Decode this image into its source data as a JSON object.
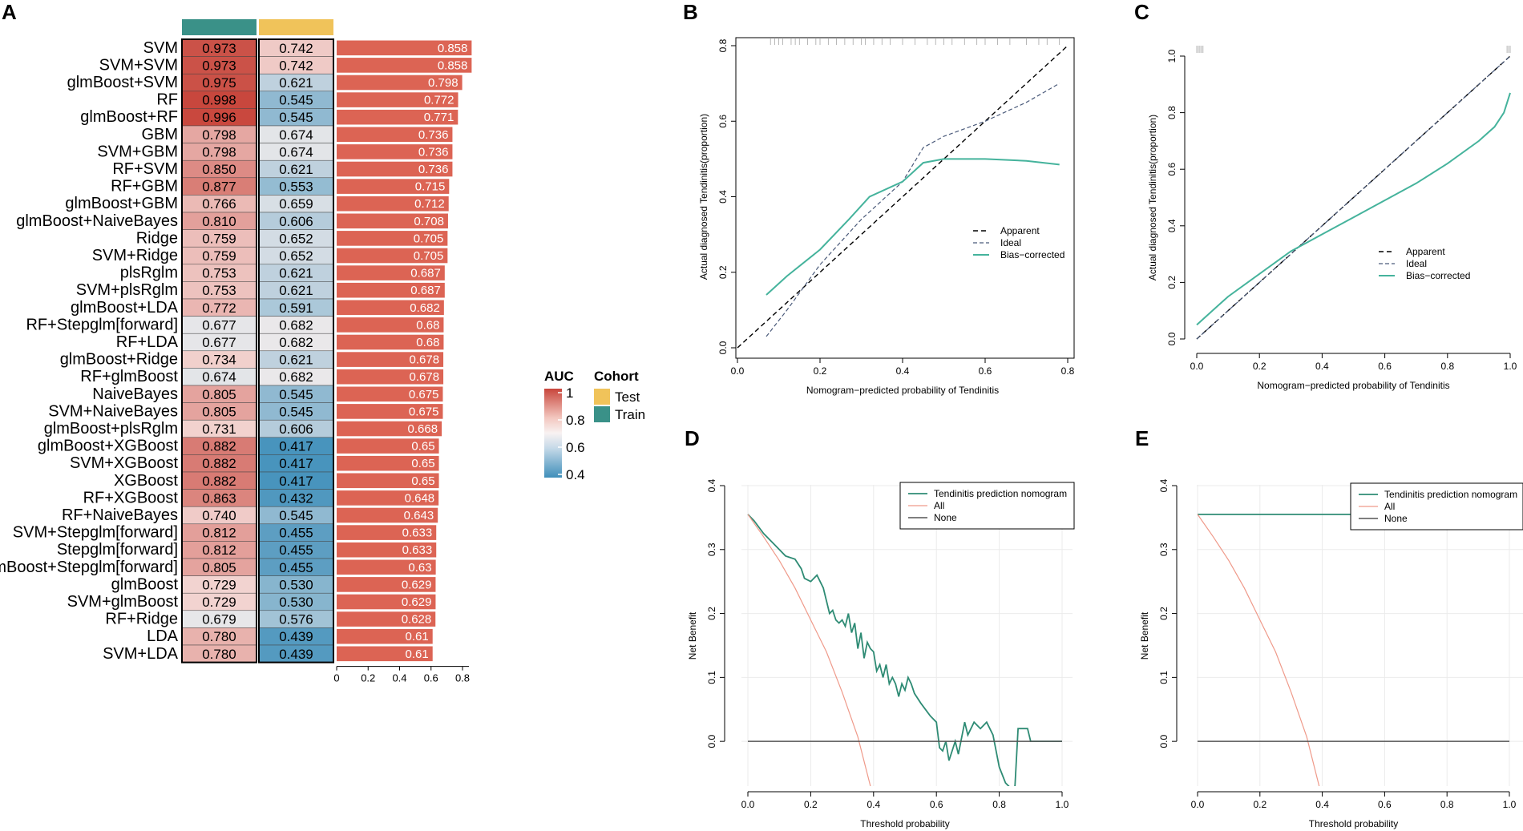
{
  "panel_labels": {
    "A": "A",
    "B": "B",
    "C": "C",
    "D": "D",
    "E": "E"
  },
  "colors": {
    "train": "#3a9188",
    "test": "#f0c35a",
    "bar": "#dc6454",
    "heat_high": "#c8463c",
    "heat_mid": "#fbf1ef",
    "heat_low": "#3f8fba",
    "cal_green": "#45b39c",
    "dca_green": "#2e8b74",
    "dca_all": "#ef9a8a",
    "dca_none": "#555555"
  },
  "heatmap_legend": {
    "auc_title": "AUC",
    "auc_ticks": [
      "1",
      "0.8",
      "0.6",
      "0.4"
    ],
    "cohort_title": "Cohort",
    "cohort_items": [
      "Test",
      "Train"
    ]
  },
  "chart_data": [
    {
      "id": "A",
      "type": "heatmap",
      "title": "",
      "columns": [
        "Train",
        "Test"
      ],
      "models": [
        "SVM",
        "SVM+SVM",
        "glmBoost+SVM",
        "RF",
        "glmBoost+RF",
        "GBM",
        "SVM+GBM",
        "RF+SVM",
        "RF+GBM",
        "glmBoost+GBM",
        "glmBoost+NaiveBayes",
        "Ridge",
        "SVM+Ridge",
        "plsRglm",
        "SVM+plsRglm",
        "glmBoost+LDA",
        "RF+Stepglm[forward]",
        "RF+LDA",
        "glmBoost+Ridge",
        "RF+glmBoost",
        "NaiveBayes",
        "SVM+NaiveBayes",
        "glmBoost+plsRglm",
        "glmBoost+XGBoost",
        "SVM+XGBoost",
        "XGBoost",
        "RF+XGBoost",
        "RF+NaiveBayes",
        "SVM+Stepglm[forward]",
        "Stepglm[forward]",
        "glmBoost+Stepglm[forward]",
        "glmBoost",
        "SVM+glmBoost",
        "RF+Ridge",
        "LDA",
        "SVM+LDA"
      ],
      "train": [
        "0.973",
        "0.973",
        "0.975",
        "0.998",
        "0.996",
        "0.798",
        "0.798",
        "0.850",
        "0.877",
        "0.766",
        "0.810",
        "0.759",
        "0.759",
        "0.753",
        "0.753",
        "0.772",
        "0.677",
        "0.677",
        "0.734",
        "0.674",
        "0.805",
        "0.805",
        "0.731",
        "0.882",
        "0.882",
        "0.882",
        "0.863",
        "0.740",
        "0.812",
        "0.812",
        "0.805",
        "0.729",
        "0.729",
        "0.679",
        "0.780",
        "0.780"
      ],
      "test": [
        "0.742",
        "0.742",
        "0.621",
        "0.545",
        "0.545",
        "0.674",
        "0.674",
        "0.621",
        "0.553",
        "0.659",
        "0.606",
        "0.652",
        "0.652",
        "0.621",
        "0.621",
        "0.591",
        "0.682",
        "0.682",
        "0.621",
        "0.682",
        "0.545",
        "0.545",
        "0.606",
        "0.417",
        "0.417",
        "0.417",
        "0.432",
        "0.545",
        "0.455",
        "0.455",
        "0.455",
        "0.530",
        "0.530",
        "0.576",
        "0.439",
        "0.439"
      ],
      "mean_bar": [
        "0.858",
        "0.858",
        "0.798",
        "0.772",
        "0.771",
        "0.736",
        "0.736",
        "0.736",
        "0.715",
        "0.712",
        "0.708",
        "0.705",
        "0.705",
        "0.687",
        "0.687",
        "0.682",
        "0.68",
        "0.68",
        "0.678",
        "0.678",
        "0.675",
        "0.675",
        "0.668",
        "0.65",
        "0.65",
        "0.65",
        "0.648",
        "0.643",
        "0.633",
        "0.633",
        "0.63",
        "0.629",
        "0.629",
        "0.628",
        "0.61",
        "0.61"
      ],
      "bar_axis_ticks": [
        "0",
        "0.2",
        "0.4",
        "0.6",
        "0.8"
      ],
      "bar_xlim": [
        0,
        0.8
      ]
    },
    {
      "id": "B",
      "type": "line",
      "xlabel": "Nomogram−predicted probability of Tendinitis",
      "ylabel": "Actual diagnosed Tendinitis(proportion)",
      "xlim": [
        0,
        0.8
      ],
      "ylim": [
        0,
        0.8
      ],
      "xticks": [
        "0.0",
        "0.2",
        "0.4",
        "0.6",
        "0.8"
      ],
      "yticks": [
        "0.0",
        "0.2",
        "0.4",
        "0.6",
        "0.8"
      ],
      "legend": [
        "Apparent",
        "Ideal",
        "Bias−corrected"
      ],
      "legend_position": "right",
      "series": [
        {
          "name": "Apparent",
          "x": [
            0,
            0.8
          ],
          "y": [
            0,
            0.8
          ]
        },
        {
          "name": "Ideal",
          "x": [
            0.07,
            0.12,
            0.2,
            0.3,
            0.4,
            0.45,
            0.5,
            0.6,
            0.7,
            0.78
          ],
          "y": [
            0.03,
            0.1,
            0.22,
            0.34,
            0.44,
            0.53,
            0.56,
            0.6,
            0.65,
            0.7
          ]
        },
        {
          "name": "Bias−corrected",
          "x": [
            0.07,
            0.12,
            0.2,
            0.27,
            0.32,
            0.4,
            0.45,
            0.5,
            0.6,
            0.7,
            0.78
          ],
          "y": [
            0.14,
            0.19,
            0.26,
            0.34,
            0.4,
            0.44,
            0.49,
            0.5,
            0.5,
            0.495,
            0.485
          ]
        }
      ],
      "rug": [
        0.08,
        0.09,
        0.1,
        0.11,
        0.13,
        0.14,
        0.15,
        0.17,
        0.19,
        0.2,
        0.22,
        0.24,
        0.26,
        0.28,
        0.3,
        0.31,
        0.33,
        0.35,
        0.37,
        0.4,
        0.43,
        0.46,
        0.48,
        0.5,
        0.52,
        0.55,
        0.58,
        0.6,
        0.63,
        0.66,
        0.7,
        0.73,
        0.75,
        0.78
      ]
    },
    {
      "id": "C",
      "type": "line",
      "xlabel": "Nomogram−predicted probability of Tendinitis",
      "ylabel": "Actual diagnosed Tendinitis(proportion)",
      "xlim": [
        0,
        1.0
      ],
      "ylim": [
        0,
        1.0
      ],
      "xticks": [
        "0.0",
        "0.2",
        "0.4",
        "0.6",
        "0.8",
        "1.0"
      ],
      "yticks": [
        "0.0",
        "0.2",
        "0.4",
        "0.6",
        "0.8",
        "1.0"
      ],
      "legend": [
        "Apparent",
        "Ideal",
        "Bias−corrected"
      ],
      "legend_position": "right",
      "series": [
        {
          "name": "Apparent",
          "x": [
            0,
            1.0
          ],
          "y": [
            0,
            1.0
          ]
        },
        {
          "name": "Ideal",
          "x": [
            0,
            1.0
          ],
          "y": [
            0,
            1.0
          ]
        },
        {
          "name": "Bias−corrected",
          "x": [
            0,
            0.05,
            0.1,
            0.2,
            0.3,
            0.4,
            0.5,
            0.6,
            0.7,
            0.8,
            0.9,
            0.95,
            0.98,
            1.0
          ],
          "y": [
            0.05,
            0.1,
            0.15,
            0.23,
            0.31,
            0.37,
            0.43,
            0.49,
            0.55,
            0.62,
            0.7,
            0.75,
            0.8,
            0.87
          ]
        }
      ],
      "rug": [
        0.0,
        0.005,
        0.01,
        0.015,
        0.02,
        0.99,
        0.995,
        1.0
      ]
    },
    {
      "id": "D",
      "type": "line",
      "xlabel": "Threshold probability",
      "ylabel": "Net Benefit",
      "xlim": [
        0,
        1.0
      ],
      "ylim": [
        -0.07,
        0.4
      ],
      "xticks": [
        "0.0",
        "0.2",
        "0.4",
        "0.6",
        "0.8",
        "1.0"
      ],
      "yticks": [
        "0.0",
        "0.1",
        "0.2",
        "0.3",
        "0.4"
      ],
      "legend": [
        "Tendinitis prediction nomogram",
        "All",
        "None"
      ],
      "legend_position": "top-right",
      "series": [
        {
          "name": "Tendinitis prediction nomogram",
          "x": [
            0,
            0.02,
            0.05,
            0.08,
            0.1,
            0.12,
            0.15,
            0.17,
            0.18,
            0.2,
            0.22,
            0.24,
            0.25,
            0.26,
            0.27,
            0.28,
            0.29,
            0.3,
            0.31,
            0.32,
            0.33,
            0.34,
            0.35,
            0.36,
            0.37,
            0.38,
            0.39,
            0.4,
            0.41,
            0.42,
            0.43,
            0.44,
            0.45,
            0.46,
            0.47,
            0.48,
            0.49,
            0.5,
            0.51,
            0.52,
            0.53,
            0.55,
            0.58,
            0.6,
            0.61,
            0.62,
            0.63,
            0.64,
            0.66,
            0.67,
            0.69,
            0.7,
            0.72,
            0.74,
            0.76,
            0.78,
            0.8,
            0.82,
            0.83,
            0.84,
            0.85,
            0.86,
            0.87,
            0.88,
            0.89,
            0.9,
            0.92,
            0.95,
            1.0
          ],
          "y": [
            0.355,
            0.345,
            0.325,
            0.31,
            0.3,
            0.29,
            0.285,
            0.27,
            0.255,
            0.25,
            0.26,
            0.24,
            0.22,
            0.2,
            0.205,
            0.19,
            0.185,
            0.19,
            0.18,
            0.2,
            0.17,
            0.185,
            0.145,
            0.17,
            0.13,
            0.155,
            0.145,
            0.14,
            0.11,
            0.12,
            0.1,
            0.12,
            0.09,
            0.1,
            0.09,
            0.07,
            0.09,
            0.08,
            0.1,
            0.09,
            0.075,
            0.06,
            0.04,
            0.03,
            -0.01,
            -0.015,
            0.0,
            -0.03,
            0.0,
            -0.02,
            0.03,
            0.01,
            0.03,
            0.02,
            0.03,
            0.01,
            -0.04,
            -0.065,
            -0.07,
            -0.075,
            -0.07,
            0.02,
            0.02,
            0.02,
            0.02,
            0.0,
            0.0,
            0.0,
            0.0
          ]
        },
        {
          "name": "All",
          "x": [
            0,
            0.05,
            0.1,
            0.15,
            0.2,
            0.25,
            0.3,
            0.35,
            0.39
          ],
          "y": [
            0.355,
            0.32,
            0.283,
            0.24,
            0.19,
            0.14,
            0.077,
            0.007,
            -0.07
          ]
        },
        {
          "name": "None",
          "x": [
            0,
            1.0
          ],
          "y": [
            0,
            0
          ]
        }
      ]
    },
    {
      "id": "E",
      "type": "line",
      "xlabel": "Threshold probability",
      "ylabel": "Net Benefit",
      "xlim": [
        0,
        1.0
      ],
      "ylim": [
        -0.07,
        0.4
      ],
      "xticks": [
        "0.0",
        "0.2",
        "0.4",
        "0.6",
        "0.8",
        "1.0"
      ],
      "yticks": [
        "0.0",
        "0.1",
        "0.2",
        "0.3",
        "0.4"
      ],
      "legend": [
        "Tendinitis prediction nomogram",
        "All",
        "None"
      ],
      "legend_position": "top-right",
      "series": [
        {
          "name": "Tendinitis prediction nomogram",
          "x": [
            0,
            1.0
          ],
          "y": [
            0.355,
            0.355
          ]
        },
        {
          "name": "All",
          "x": [
            0,
            0.05,
            0.1,
            0.15,
            0.2,
            0.25,
            0.3,
            0.35,
            0.39
          ],
          "y": [
            0.355,
            0.32,
            0.283,
            0.24,
            0.19,
            0.14,
            0.077,
            0.007,
            -0.07
          ]
        },
        {
          "name": "None",
          "x": [
            0,
            1.0
          ],
          "y": [
            0,
            0
          ]
        }
      ]
    }
  ]
}
